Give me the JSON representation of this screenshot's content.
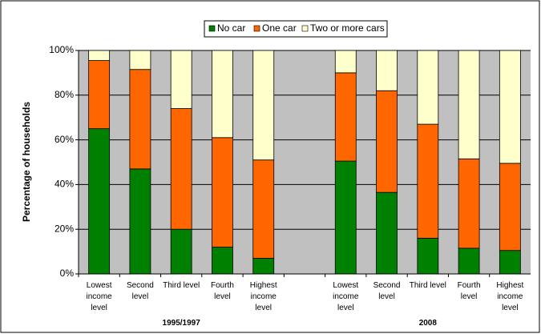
{
  "chart_data": {
    "type": "stacked_bar",
    "y_label": "Percentage of households",
    "categories": [
      "Lowest income level",
      "Second level",
      "Third level",
      "Fourth level",
      "Highest income level",
      null,
      "Lowest income level",
      "Second level",
      "Third level",
      "Fourth level",
      "Highest income level"
    ],
    "group_labels": [
      "1995/1997",
      "2008"
    ],
    "series": [
      {
        "name": "No car",
        "color": "#008000",
        "values": [
          65,
          47,
          20,
          12,
          7,
          null,
          50.5,
          36.5,
          16,
          11.5,
          10.5
        ]
      },
      {
        "name": "One car",
        "color": "#ff6600",
        "values": [
          30.5,
          44.5,
          54,
          49,
          44,
          null,
          39.5,
          45.5,
          51,
          40,
          39
        ]
      },
      {
        "name": "Two or more cars",
        "color": "#ffffcc",
        "values": [
          4.5,
          8.5,
          26,
          39,
          49,
          null,
          10,
          18,
          33,
          48.5,
          50.5
        ]
      }
    ],
    "ylim": [
      0,
      100
    ],
    "yticks": [
      {
        "value": 0,
        "label": "0%"
      },
      {
        "value": 20,
        "label": "20%"
      },
      {
        "value": 40,
        "label": "40%"
      },
      {
        "value": 60,
        "label": "60%"
      },
      {
        "value": 80,
        "label": "80%"
      },
      {
        "value": 100,
        "label": "100%"
      }
    ],
    "grid": true,
    "legend": "top"
  }
}
